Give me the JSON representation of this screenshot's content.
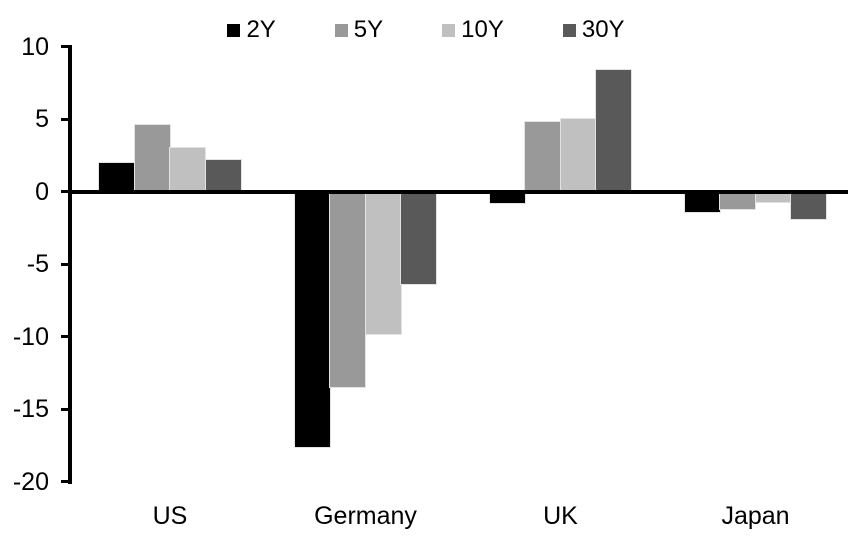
{
  "chart_data": {
    "type": "bar",
    "title": "",
    "xlabel": "",
    "ylabel": "",
    "categories": [
      "US",
      "Germany",
      "UK",
      "Japan"
    ],
    "series": [
      {
        "name": "2Y",
        "color": "#000000",
        "values": [
          2.0,
          -17.6,
          -0.8,
          -1.4
        ]
      },
      {
        "name": "5Y",
        "color": "#999999",
        "values": [
          4.6,
          -13.5,
          4.8,
          -1.2
        ]
      },
      {
        "name": "10Y",
        "color": "#c0c0c0",
        "values": [
          3.0,
          -9.8,
          5.0,
          -0.7
        ]
      },
      {
        "name": "30Y",
        "color": "#595959",
        "values": [
          2.2,
          -6.4,
          8.4,
          -1.9
        ]
      }
    ],
    "y_ticks": [
      10,
      5,
      0,
      -5,
      -10,
      -15,
      -20
    ],
    "ylim": [
      -20,
      10
    ],
    "legend_position": "top",
    "grid": false,
    "axis_color": "#000000",
    "background_color": "#ffffff"
  }
}
